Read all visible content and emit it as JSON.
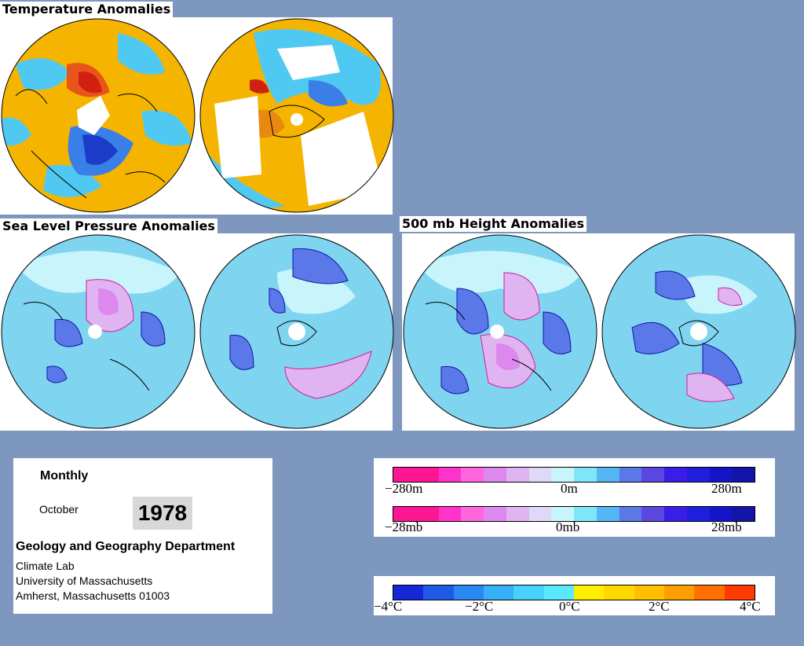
{
  "titles": {
    "temperature": "Temperature Anomalies",
    "slp": "Sea Level Pressure Anomalies",
    "height": "500 mb Height Anomalies"
  },
  "info": {
    "period": "Monthly",
    "month": "October",
    "year": "1978",
    "department": "Geology and Geography Department",
    "lab": "Climate Lab",
    "university": "University of Massachusetts",
    "address": "Amherst, Massachusetts 01003"
  },
  "height_scale": {
    "labels": [
      "−280m",
      "0m",
      "280m"
    ],
    "colors": [
      "#ff1493",
      "#ff1493",
      "#ff33cc",
      "#ff66dd",
      "#dd88ee",
      "#e0b4f0",
      "#e0d8f8",
      "#c8f4fc",
      "#7fe6f8",
      "#54b4f4",
      "#5a78e8",
      "#5a46e0",
      "#3a1ee8",
      "#1e1edc",
      "#1414c8",
      "#1414a8"
    ]
  },
  "slp_scale": {
    "labels": [
      "−28mb",
      "0mb",
      "28mb"
    ],
    "colors": [
      "#ff1493",
      "#ff1493",
      "#ff33cc",
      "#ff66dd",
      "#dd88ee",
      "#e0b4f0",
      "#e0d8f8",
      "#c8f4fc",
      "#7fe6f8",
      "#54b4f4",
      "#5a78e8",
      "#5a46e0",
      "#3a1ee8",
      "#1e1edc",
      "#1414c8",
      "#1414a8"
    ]
  },
  "temp_scale": {
    "labels": [
      "−4°C",
      "−2°C",
      "0°C",
      "2°C",
      "4°C"
    ],
    "colors": [
      "#1428d8",
      "#1e5ae6",
      "#2a88f2",
      "#38b0f8",
      "#46d2fa",
      "#5ae8fc",
      "#ffee00",
      "#ffd800",
      "#ffbe00",
      "#ff9e00",
      "#ff7000",
      "#ff3a00"
    ]
  }
}
